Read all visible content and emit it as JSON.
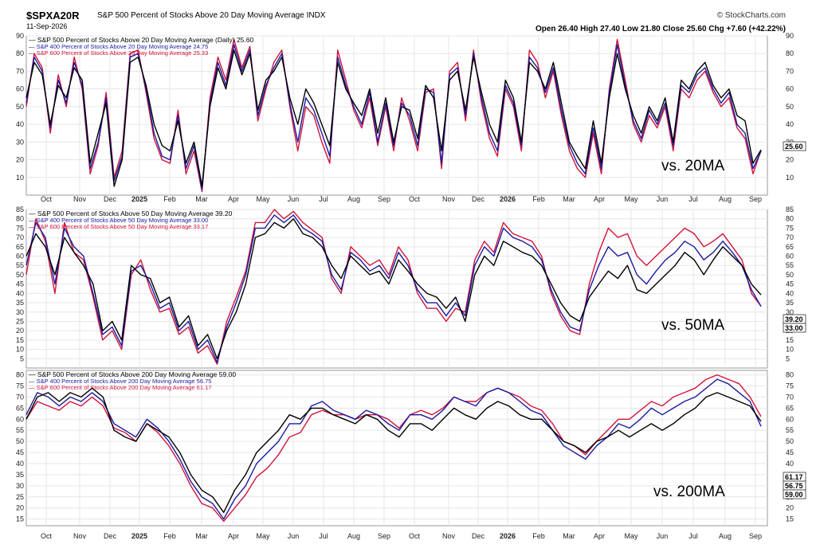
{
  "header": {
    "symbol": "$SPXA20R",
    "description": "S&P 500 Percent of Stocks Above 20 Day Moving Average INDX",
    "date": "11-Sep-2026",
    "brand": "© StockCharts.com",
    "ohlc": "Open 26.40   High 27.40   Low 21.80   Close 25.60   Chg +7.60 (+42.22%)"
  },
  "colors": {
    "sp500": "#000000",
    "sp400": "#1a1aa0",
    "sp600": "#d0143c",
    "grid": "#e6e6e6"
  },
  "x_axis_labels": [
    "Oct",
    "Nov",
    "Dec",
    "2025",
    "Feb",
    "Mar",
    "Apr",
    "May",
    "Jun",
    "Jul",
    "Aug",
    "Sep",
    "Oct",
    "Nov",
    "Dec",
    "2026",
    "Feb",
    "Mar",
    "Apr",
    "May",
    "Jun",
    "Jul",
    "Aug",
    "Sep"
  ],
  "chart_data": [
    {
      "type": "line",
      "annotation": "vs. 20MA",
      "ylim": [
        0,
        90
      ],
      "yticks": [
        10,
        20,
        30,
        40,
        50,
        60,
        70,
        80,
        90
      ],
      "grid": true,
      "legend": "top-left",
      "x_start": "Sep 2024",
      "x_end": "Sep 2026",
      "last_values": [
        "25.60"
      ],
      "series": [
        {
          "name": "S&P 500 Percent of Stocks Above 20 Day Moving Average (Daily) 25.60",
          "values": [
            55,
            75,
            68,
            40,
            62,
            55,
            72,
            65,
            18,
            35,
            52,
            5,
            20,
            75,
            78,
            62,
            40,
            28,
            25,
            42,
            18,
            30,
            5,
            50,
            72,
            60,
            82,
            68,
            80,
            48,
            65,
            70,
            78,
            55,
            40,
            60,
            52,
            40,
            28,
            75,
            60,
            52,
            45,
            60,
            35,
            55,
            30,
            50,
            48,
            32,
            62,
            55,
            25,
            65,
            70,
            48,
            78,
            58,
            40,
            30,
            65,
            55,
            30,
            75,
            70,
            60,
            75,
            52,
            30,
            22,
            15,
            42,
            18,
            55,
            80,
            60,
            45,
            35,
            50,
            42,
            55,
            30,
            65,
            60,
            70,
            75,
            62,
            55,
            60,
            45,
            42,
            18,
            25.6
          ]
        },
        {
          "name": "S&P 400 Percent of Stocks Above 20 Day Moving Average 24.75",
          "values": [
            52,
            78,
            70,
            38,
            65,
            52,
            75,
            62,
            15,
            30,
            55,
            8,
            22,
            78,
            80,
            60,
            35,
            22,
            20,
            45,
            15,
            28,
            3,
            52,
            75,
            62,
            85,
            70,
            82,
            45,
            62,
            72,
            80,
            52,
            30,
            55,
            48,
            35,
            22,
            78,
            62,
            50,
            40,
            58,
            30,
            52,
            28,
            52,
            45,
            28,
            60,
            58,
            18,
            68,
            72,
            45,
            80,
            55,
            35,
            25,
            62,
            52,
            28,
            78,
            72,
            58,
            72,
            48,
            28,
            18,
            12,
            38,
            15,
            58,
            85,
            62,
            42,
            32,
            48,
            40,
            52,
            28,
            62,
            58,
            68,
            72,
            60,
            52,
            58,
            40,
            35,
            15,
            24.75
          ]
        },
        {
          "name": "S&P 600 Percent of Stocks Above 20 Day Moving Average 25.33",
          "values": [
            50,
            80,
            72,
            35,
            68,
            50,
            78,
            60,
            12,
            28,
            58,
            10,
            25,
            80,
            82,
            58,
            32,
            20,
            18,
            48,
            12,
            25,
            2,
            55,
            78,
            65,
            88,
            72,
            84,
            42,
            60,
            75,
            82,
            50,
            25,
            50,
            45,
            30,
            18,
            82,
            65,
            48,
            38,
            55,
            28,
            50,
            25,
            55,
            42,
            25,
            58,
            60,
            15,
            70,
            75,
            42,
            82,
            52,
            32,
            22,
            60,
            50,
            25,
            82,
            75,
            55,
            70,
            45,
            25,
            15,
            10,
            35,
            12,
            60,
            88,
            65,
            40,
            30,
            45,
            38,
            50,
            25,
            60,
            55,
            65,
            70,
            58,
            50,
            55,
            38,
            32,
            12,
            25.33
          ]
        }
      ]
    },
    {
      "type": "line",
      "annotation": "vs. 50MA",
      "ylim": [
        0,
        85
      ],
      "yticks": [
        5,
        10,
        15,
        20,
        25,
        30,
        35,
        40,
        45,
        50,
        55,
        60,
        65,
        70,
        75,
        80,
        85
      ],
      "grid": true,
      "legend": "top-left",
      "x_start": "Sep 2024",
      "x_end": "Sep 2026",
      "last_values": [
        "39.20",
        "33.00"
      ],
      "series": [
        {
          "name": "S&P 500 Percent of Stocks Above 50 Day Moving Average 39.20",
          "values": [
            60,
            72,
            65,
            50,
            70,
            62,
            55,
            45,
            20,
            25,
            15,
            55,
            50,
            48,
            35,
            38,
            22,
            28,
            12,
            18,
            5,
            20,
            30,
            45,
            70,
            72,
            78,
            75,
            80,
            72,
            70,
            65,
            55,
            48,
            60,
            55,
            50,
            52,
            45,
            58,
            52,
            45,
            40,
            38,
            32,
            38,
            25,
            50,
            60,
            55,
            68,
            65,
            62,
            60,
            55,
            45,
            35,
            28,
            25,
            38,
            45,
            52,
            48,
            55,
            42,
            40,
            45,
            50,
            55,
            62,
            58,
            50,
            58,
            65,
            60,
            55,
            45,
            39.2
          ]
        },
        {
          "name": "S&P 400 Percent of Stocks Above 50 Day Moving Average 33.00",
          "values": [
            55,
            78,
            70,
            45,
            75,
            65,
            60,
            40,
            18,
            22,
            12,
            52,
            55,
            45,
            32,
            35,
            20,
            25,
            10,
            15,
            3,
            22,
            35,
            50,
            75,
            75,
            82,
            78,
            82,
            75,
            72,
            68,
            50,
            42,
            62,
            58,
            52,
            55,
            48,
            62,
            55,
            42,
            35,
            35,
            28,
            35,
            28,
            55,
            65,
            60,
            75,
            70,
            68,
            65,
            58,
            42,
            30,
            22,
            20,
            42,
            55,
            65,
            60,
            62,
            50,
            45,
            52,
            58,
            62,
            68,
            65,
            58,
            62,
            68,
            62,
            55,
            42,
            33
          ]
        },
        {
          "name": "S&P 600 Percent of Stocks Above 50 Day Moving Average 33.17",
          "values": [
            50,
            80,
            68,
            40,
            78,
            62,
            58,
            38,
            15,
            20,
            10,
            50,
            58,
            42,
            30,
            32,
            18,
            22,
            8,
            12,
            2,
            25,
            38,
            52,
            78,
            78,
            85,
            80,
            84,
            78,
            74,
            70,
            48,
            40,
            65,
            60,
            55,
            58,
            50,
            65,
            58,
            40,
            32,
            32,
            25,
            32,
            30,
            58,
            68,
            62,
            78,
            72,
            70,
            68,
            60,
            40,
            28,
            20,
            18,
            45,
            62,
            75,
            70,
            72,
            60,
            55,
            60,
            65,
            70,
            75,
            72,
            65,
            68,
            72,
            65,
            58,
            40,
            33.17
          ]
        }
      ]
    },
    {
      "type": "line",
      "annotation": "vs. 200MA",
      "ylim": [
        12,
        82
      ],
      "yticks": [
        15,
        20,
        25,
        30,
        35,
        40,
        45,
        50,
        55,
        60,
        65,
        70,
        75,
        80
      ],
      "grid": true,
      "legend": "top-left",
      "x_start": "Sep 2024",
      "x_end": "Sep 2026",
      "last_values": [
        "61.17",
        "56.75",
        "59.00"
      ],
      "series": [
        {
          "name": "S&P 500 Percent of Stocks Above 200 Day Moving Average 59.00",
          "values": [
            60,
            70,
            72,
            68,
            72,
            70,
            74,
            70,
            55,
            52,
            50,
            58,
            55,
            52,
            45,
            35,
            28,
            25,
            18,
            28,
            35,
            45,
            50,
            55,
            62,
            60,
            65,
            65,
            62,
            60,
            58,
            62,
            60,
            55,
            52,
            58,
            58,
            55,
            60,
            65,
            62,
            60,
            65,
            68,
            66,
            62,
            60,
            60,
            55,
            50,
            48,
            45,
            50,
            52,
            55,
            52,
            55,
            58,
            55,
            58,
            62,
            65,
            70,
            72,
            70,
            68,
            66,
            59
          ]
        },
        {
          "name": "S&P 400 Percent of Stocks Above 200 Day Moving Average 56.75",
          "values": [
            62,
            72,
            70,
            66,
            70,
            68,
            72,
            68,
            58,
            55,
            52,
            60,
            56,
            50,
            42,
            32,
            25,
            22,
            15,
            24,
            30,
            40,
            45,
            50,
            58,
            58,
            66,
            68,
            64,
            62,
            60,
            64,
            62,
            58,
            55,
            62,
            62,
            60,
            64,
            70,
            68,
            66,
            72,
            74,
            72,
            68,
            64,
            62,
            55,
            48,
            45,
            42,
            48,
            52,
            58,
            56,
            60,
            65,
            62,
            65,
            68,
            70,
            74,
            78,
            76,
            72,
            68,
            56.75
          ]
        },
        {
          "name": "S&P 600 Percent of Stocks Above 200 Day Moving Average 61.17",
          "values": [
            60,
            68,
            66,
            64,
            68,
            66,
            70,
            66,
            56,
            54,
            50,
            58,
            54,
            48,
            40,
            30,
            22,
            20,
            14,
            20,
            26,
            34,
            38,
            44,
            52,
            54,
            62,
            64,
            62,
            62,
            60,
            62,
            62,
            60,
            56,
            62,
            64,
            62,
            65,
            70,
            68,
            68,
            72,
            74,
            72,
            70,
            66,
            64,
            58,
            50,
            48,
            44,
            50,
            55,
            60,
            60,
            64,
            68,
            66,
            70,
            72,
            74,
            78,
            80,
            78,
            76,
            70,
            61.17
          ]
        }
      ]
    }
  ]
}
